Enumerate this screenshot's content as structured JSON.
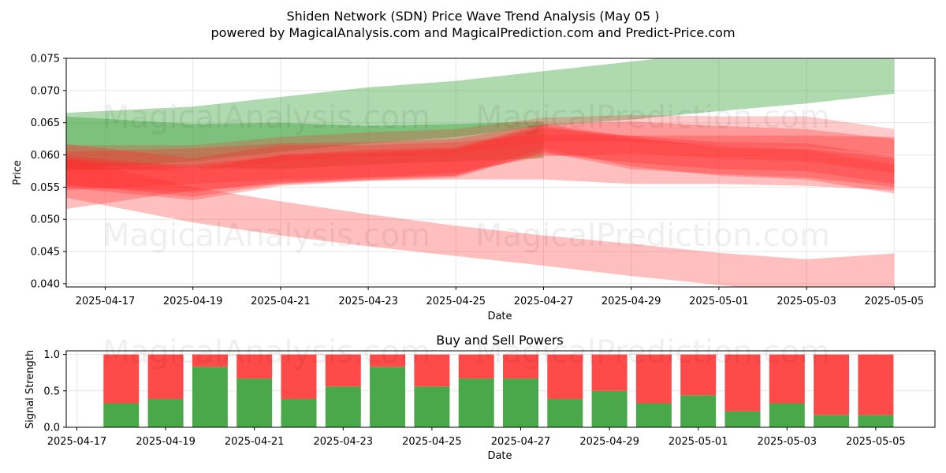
{
  "title": "Shiden Network (SDN) Price Wave Trend Analysis (May 05 )",
  "subtitle": "powered by MagicalAnalysis.com and MagicalPrediction.com and Predict-Price.com",
  "watermarks": [
    "MagicalAnalysis.com",
    "MagicalPrediction.com"
  ],
  "colors": {
    "green_band": "#2e9b2e",
    "red_band": "#ff2a2a",
    "buy": "#4aa84a",
    "sell": "#ff4a4a",
    "grid": "#e6e6e6"
  },
  "chart_data": [
    {
      "type": "area",
      "title": "",
      "xlabel": "Date",
      "ylabel": "Price",
      "ylim": [
        0.0395,
        0.075
      ],
      "yticks": [
        "0.040",
        "0.045",
        "0.050",
        "0.055",
        "0.060",
        "0.065",
        "0.070",
        "0.075"
      ],
      "xticks": [
        "2025-04-17",
        "2025-04-19",
        "2025-04-21",
        "2025-04-23",
        "2025-04-25",
        "2025-04-27",
        "2025-04-29",
        "2025-05-01",
        "2025-05-03",
        "2025-05-05"
      ],
      "grid": true,
      "series": [
        {
          "color": "green",
          "opacity": 0.38,
          "x": [
            "2025-04-16",
            "2025-04-19",
            "2025-04-21",
            "2025-04-23",
            "2025-04-25",
            "2025-04-27",
            "2025-04-29",
            "2025-05-01",
            "2025-05-03",
            "2025-05-05"
          ],
          "upper": [
            0.0665,
            0.0675,
            0.069,
            0.0705,
            0.0715,
            0.073,
            0.0745,
            0.076,
            0.0775,
            0.0755
          ],
          "lower": [
            0.0578,
            0.059,
            0.0605,
            0.0618,
            0.0628,
            0.0645,
            0.0655,
            0.0668,
            0.068,
            0.0695
          ]
        },
        {
          "color": "green",
          "opacity": 0.38,
          "x": [
            "2025-04-16",
            "2025-04-19",
            "2025-04-21",
            "2025-04-23",
            "2025-04-25",
            "2025-04-27"
          ],
          "upper": [
            0.066,
            0.0648,
            0.065,
            0.0645,
            0.0648,
            0.0652
          ],
          "lower": [
            0.0575,
            0.058,
            0.0578,
            0.0585,
            0.059,
            0.0595
          ]
        },
        {
          "color": "red",
          "opacity": 0.3,
          "x": [
            "2025-04-16",
            "2025-04-19",
            "2025-04-21",
            "2025-04-23",
            "2025-04-25",
            "2025-04-27",
            "2025-04-29",
            "2025-05-01",
            "2025-05-03",
            "2025-05-05"
          ],
          "upper": [
            0.0598,
            0.055,
            0.0528,
            0.0508,
            0.049,
            0.0475,
            0.0462,
            0.0448,
            0.0438,
            0.0447
          ],
          "lower": [
            0.0535,
            0.0495,
            0.0475,
            0.0458,
            0.0443,
            0.0428,
            0.0412,
            0.0398,
            0.0385,
            0.0385
          ]
        },
        {
          "color": "red",
          "opacity": 0.3,
          "x": [
            "2025-04-16",
            "2025-04-19",
            "2025-04-21",
            "2025-04-23",
            "2025-04-25",
            "2025-04-27",
            "2025-04-29",
            "2025-05-01",
            "2025-05-03",
            "2025-05-05"
          ],
          "upper": [
            0.0618,
            0.0595,
            0.0615,
            0.0615,
            0.062,
            0.0632,
            0.063,
            0.063,
            0.063,
            0.0628
          ],
          "lower": [
            0.0515,
            0.0545,
            0.0555,
            0.056,
            0.0562,
            0.0562,
            0.0555,
            0.0555,
            0.0552,
            0.0545
          ]
        },
        {
          "color": "red",
          "opacity": 0.3,
          "x": [
            "2025-04-16",
            "2025-04-19",
            "2025-04-21",
            "2025-04-23",
            "2025-04-25",
            "2025-04-27",
            "2025-04-29",
            "2025-05-01",
            "2025-05-03",
            "2025-05-05"
          ],
          "upper": [
            0.0605,
            0.061,
            0.0618,
            0.062,
            0.0625,
            0.0648,
            0.0652,
            0.0645,
            0.064,
            0.0625
          ],
          "lower": [
            0.0545,
            0.0555,
            0.0562,
            0.0565,
            0.0572,
            0.0598,
            0.0602,
            0.0595,
            0.059,
            0.0572
          ]
        },
        {
          "color": "red",
          "opacity": 0.3,
          "x": [
            "2025-04-16",
            "2025-04-19",
            "2025-04-21",
            "2025-04-23",
            "2025-04-25",
            "2025-04-27",
            "2025-04-29",
            "2025-05-01",
            "2025-05-03",
            "2025-05-05"
          ],
          "upper": [
            0.06,
            0.058,
            0.06,
            0.0605,
            0.061,
            0.0645,
            0.0625,
            0.0615,
            0.061,
            0.0595
          ],
          "lower": [
            0.055,
            0.053,
            0.0552,
            0.056,
            0.0565,
            0.0605,
            0.0578,
            0.057,
            0.0565,
            0.055
          ]
        },
        {
          "color": "red",
          "opacity": 0.3,
          "x": [
            "2025-04-16",
            "2025-04-19",
            "2025-04-21",
            "2025-04-23",
            "2025-04-25",
            "2025-04-27",
            "2025-04-29",
            "2025-05-01",
            "2025-05-03",
            "2025-05-05"
          ],
          "upper": [
            0.0595,
            0.0575,
            0.06,
            0.0608,
            0.0612,
            0.0648,
            0.0628,
            0.0612,
            0.0608,
            0.0585
          ],
          "lower": [
            0.0555,
            0.0535,
            0.0555,
            0.0565,
            0.0568,
            0.061,
            0.0582,
            0.0568,
            0.0562,
            0.054
          ]
        },
        {
          "color": "red",
          "opacity": 0.3,
          "x": [
            "2025-04-16",
            "2025-04-19",
            "2025-04-21",
            "2025-04-23",
            "2025-04-25",
            "2025-04-27",
            "2025-04-29",
            "2025-05-01",
            "2025-05-03",
            "2025-05-05"
          ],
          "upper": [
            0.0592,
            0.0585,
            0.0598,
            0.0602,
            0.0608,
            0.0642,
            0.063,
            0.062,
            0.0618,
            0.0598
          ],
          "lower": [
            0.0552,
            0.0542,
            0.0558,
            0.0562,
            0.0568,
            0.0602,
            0.0588,
            0.0578,
            0.0575,
            0.0555
          ]
        },
        {
          "color": "red",
          "opacity": 0.25,
          "x": [
            "2025-04-16",
            "2025-04-19",
            "2025-04-21",
            "2025-04-23",
            "2025-04-25",
            "2025-04-27",
            "2025-04-29",
            "2025-05-01",
            "2025-05-03",
            "2025-05-05"
          ],
          "upper": [
            0.0615,
            0.0615,
            0.0628,
            0.0635,
            0.064,
            0.0658,
            0.0662,
            0.066,
            0.066,
            0.064
          ],
          "lower": [
            0.0578,
            0.0575,
            0.059,
            0.0598,
            0.0602,
            0.062,
            0.062,
            0.0615,
            0.0612,
            0.06
          ]
        }
      ]
    },
    {
      "type": "bar",
      "title": "Buy and Sell Powers",
      "xlabel": "Date",
      "ylabel": "Signal Strength",
      "ylim": [
        0,
        1.05
      ],
      "yticks": [
        "0.0",
        "0.5",
        "1.0"
      ],
      "xticks": [
        "2025-04-17",
        "2025-04-19",
        "2025-04-21",
        "2025-04-23",
        "2025-04-25",
        "2025-04-27",
        "2025-04-29",
        "2025-05-01",
        "2025-05-03",
        "2025-05-05"
      ],
      "grid": true,
      "categories": [
        "2025-04-18",
        "2025-04-19",
        "2025-04-20",
        "2025-04-21",
        "2025-04-22",
        "2025-04-23",
        "2025-04-24",
        "2025-04-25",
        "2025-04-26",
        "2025-04-27",
        "2025-04-28",
        "2025-04-29",
        "2025-04-30",
        "2025-05-01",
        "2025-05-02",
        "2025-05-03",
        "2025-05-04",
        "2025-05-05"
      ],
      "series": [
        {
          "values": [
            0.33,
            0.39,
            0.83,
            0.67,
            0.39,
            0.56,
            0.83,
            0.56,
            0.67,
            0.67,
            0.39,
            0.5,
            0.33,
            0.44,
            0.22,
            0.33,
            0.17,
            0.17
          ]
        },
        {
          "values": [
            0.67,
            0.61,
            0.17,
            0.33,
            0.61,
            0.44,
            0.17,
            0.44,
            0.33,
            0.33,
            0.61,
            0.5,
            0.67,
            0.56,
            0.78,
            0.67,
            0.83,
            0.83
          ]
        }
      ]
    }
  ]
}
